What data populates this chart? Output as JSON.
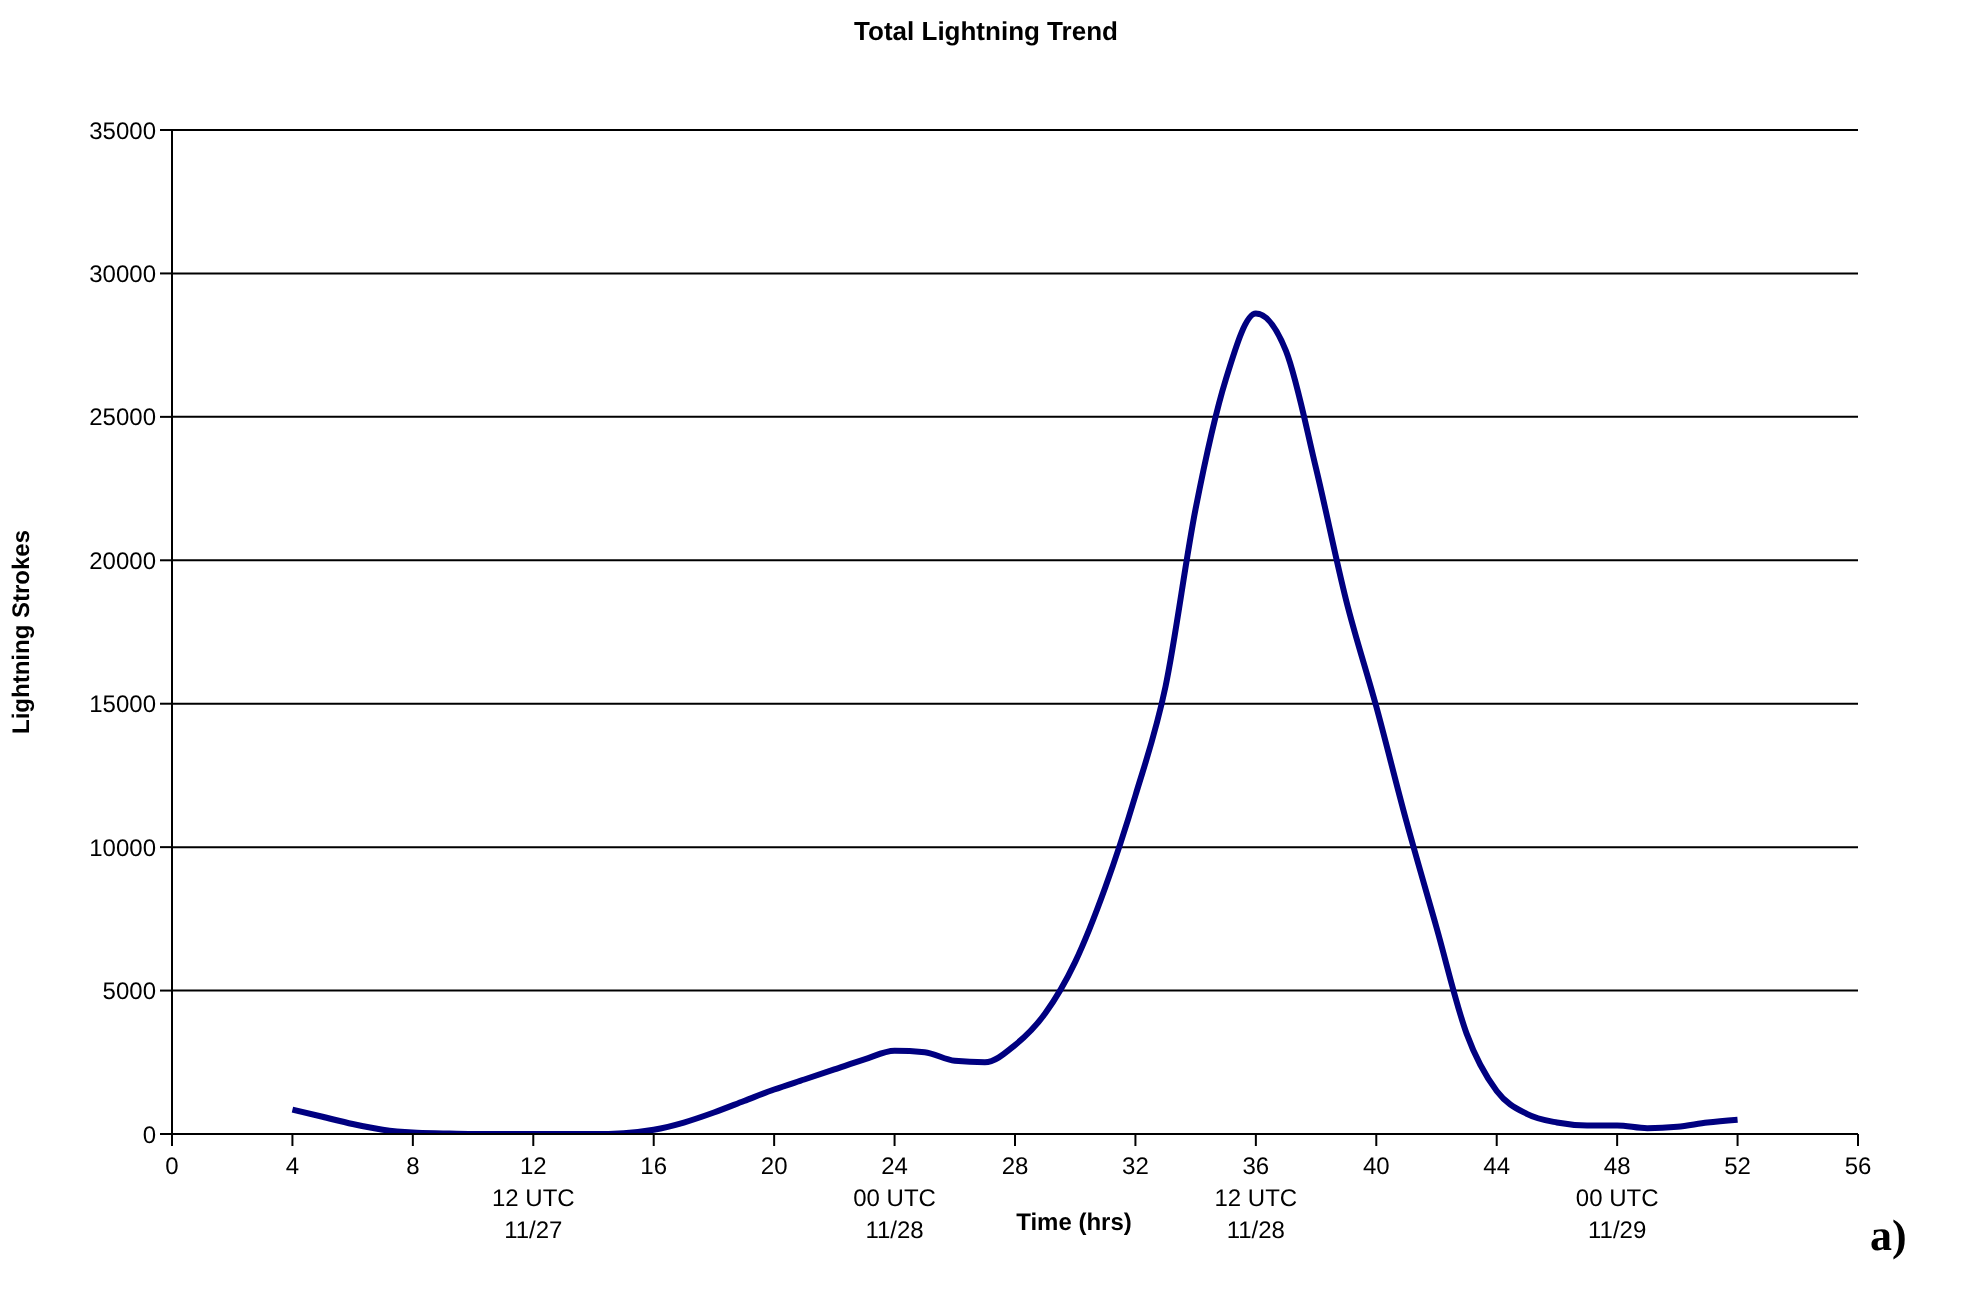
{
  "chart_data": {
    "type": "line",
    "title": "Total Lightning Trend",
    "xlabel": "Time (hrs)",
    "ylabel": "Lightning Strokes",
    "annotations": [
      "a)"
    ],
    "x": [
      4,
      5,
      6,
      7,
      8,
      9,
      10,
      11,
      12,
      13,
      14,
      15,
      16,
      17,
      18,
      19,
      20,
      21,
      22,
      23,
      24,
      25,
      26,
      27,
      28,
      29,
      30,
      31,
      32,
      33,
      34,
      35,
      36,
      37,
      38,
      39,
      40,
      41,
      42,
      43,
      44,
      45,
      46,
      47,
      48,
      49,
      50,
      51,
      52
    ],
    "series": [
      {
        "color": "#000080",
        "values": [
          850,
          600,
          350,
          150,
          50,
          20,
          0,
          0,
          0,
          0,
          0,
          30,
          150,
          400,
          750,
          1150,
          1550,
          1900,
          2250,
          2600,
          2900,
          2850,
          2550,
          2500,
          3100,
          4200,
          6000,
          8600,
          11800,
          15600,
          21800,
          26300,
          28600,
          27300,
          23200,
          18600,
          14900,
          10900,
          7200,
          3500,
          1500,
          700,
          400,
          300,
          300,
          200,
          250,
          400,
          500
        ]
      }
    ],
    "xlim": [
      0,
      56
    ],
    "xticks": [
      0,
      4,
      8,
      {
        "value": 12,
        "label": "12\n12 UTC\n11/27"
      },
      16,
      20,
      {
        "value": 24,
        "label": "24\n00 UTC\n11/28"
      },
      28,
      32,
      {
        "value": 36,
        "label": "36\n12 UTC\n11/28"
      },
      40,
      44,
      {
        "value": 48,
        "label": "48\n00 UTC\n11/29"
      },
      52,
      56
    ],
    "ylim": [
      0,
      35000
    ],
    "yticks": [
      0,
      5000,
      10000,
      15000,
      20000,
      25000,
      30000,
      35000
    ],
    "grid": "y",
    "marker": "none",
    "line_style": "solid"
  }
}
